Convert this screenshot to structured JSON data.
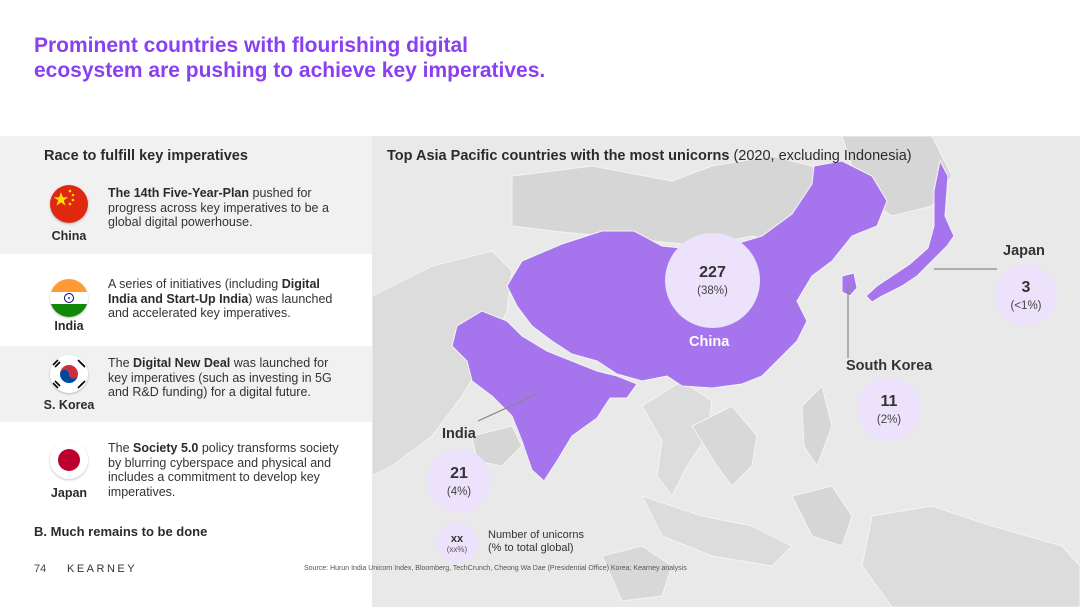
{
  "title": "Prominent countries with flourishing digital ecosystem are pushing to achieve key imperatives.",
  "left": {
    "heading": "Race to fulfill key imperatives",
    "countries": [
      {
        "name": "China",
        "bold1": "The 14th Five-Year-Plan",
        "text1": " pushed for progress across key imperatives to be a global digital powerhouse.",
        "bold2": "",
        "text2": ""
      },
      {
        "name": "India",
        "text0": "A series of initiatives (including ",
        "bold1": "Digital India and Start-Up India",
        "text1": ") was launched and accelerated key imperatives."
      },
      {
        "name": "S. Korea",
        "text0": "The ",
        "bold1": "Digital New Deal",
        "text1": " was launched for key imperatives (such as investing in 5G and  R&D funding) for a digital future."
      },
      {
        "name": "Japan",
        "text0": "The ",
        "bold1": "Society 5.0",
        "text1": " policy transforms society by blurring cyberspace and physical and includes a commitment to develop key imperatives."
      }
    ],
    "bottom_note": "B. Much remains to be done"
  },
  "map": {
    "heading_bold": "Top Asia Pacific countries with the most unicorns",
    "heading_rest": " (2020, excluding Indonesia)",
    "china": {
      "label": "China",
      "value": "227",
      "pct": "(38%)"
    },
    "india": {
      "label": "India",
      "value": "21",
      "pct": "(4%)"
    },
    "south_korea": {
      "label": "South Korea",
      "value": "11",
      "pct": "(2%)"
    },
    "japan": {
      "label": "Japan",
      "value": "3",
      "pct": "(<1%)"
    },
    "legend": {
      "xx": "xx",
      "xxp": "(xx%)",
      "line1": "Number of unicorns",
      "line2": "(% to total global)"
    }
  },
  "footer": {
    "page": "74",
    "brand": "KEARNEY",
    "source": "Source: Hurun India Unicorn Index, Bloomberg, TechCrunch, Cheong Wa Dae (Presidential Office) Korea; Kearney analysis"
  },
  "colors": {
    "accent": "#8a3ff0",
    "highlight_country": "#a675ee",
    "bubble": "#ece2fb",
    "map_land": "#dcdcdc",
    "map_bg": "#e9e9e9"
  }
}
